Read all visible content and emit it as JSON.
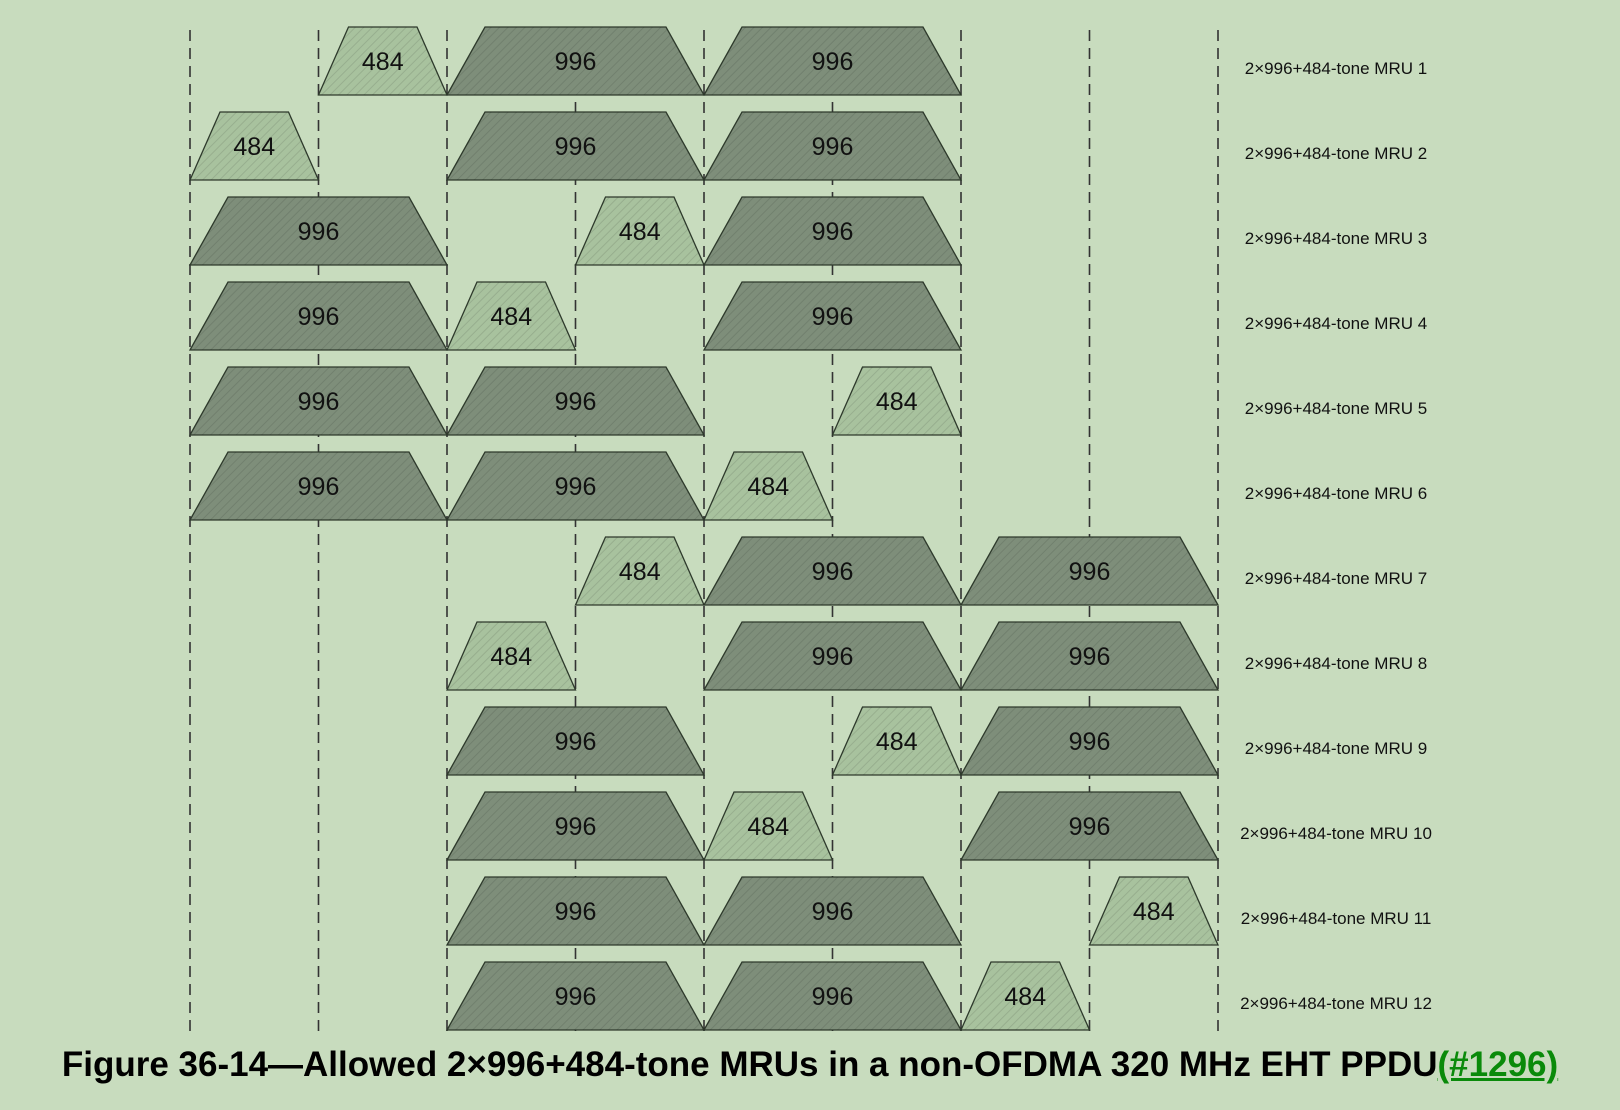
{
  "chart_data": {
    "type": "diagram",
    "segment_count": 8,
    "rows": [
      {
        "label": "2×996+484-tone MRU 1",
        "blocks": [
          {
            "size": "484",
            "start": 1,
            "span": 1
          },
          {
            "size": "996",
            "start": 2,
            "span": 2
          },
          {
            "size": "996",
            "start": 4,
            "span": 2
          }
        ]
      },
      {
        "label": "2×996+484-tone MRU 2",
        "blocks": [
          {
            "size": "484",
            "start": 0,
            "span": 1
          },
          {
            "size": "996",
            "start": 2,
            "span": 2
          },
          {
            "size": "996",
            "start": 4,
            "span": 2
          }
        ]
      },
      {
        "label": "2×996+484-tone MRU 3",
        "blocks": [
          {
            "size": "996",
            "start": 0,
            "span": 2
          },
          {
            "size": "484",
            "start": 3,
            "span": 1
          },
          {
            "size": "996",
            "start": 4,
            "span": 2
          }
        ]
      },
      {
        "label": "2×996+484-tone MRU 4",
        "blocks": [
          {
            "size": "996",
            "start": 0,
            "span": 2
          },
          {
            "size": "484",
            "start": 2,
            "span": 1
          },
          {
            "size": "996",
            "start": 4,
            "span": 2
          }
        ]
      },
      {
        "label": "2×996+484-tone MRU 5",
        "blocks": [
          {
            "size": "996",
            "start": 0,
            "span": 2
          },
          {
            "size": "996",
            "start": 2,
            "span": 2
          },
          {
            "size": "484",
            "start": 5,
            "span": 1
          }
        ]
      },
      {
        "label": "2×996+484-tone MRU 6",
        "blocks": [
          {
            "size": "996",
            "start": 0,
            "span": 2
          },
          {
            "size": "996",
            "start": 2,
            "span": 2
          },
          {
            "size": "484",
            "start": 4,
            "span": 1
          }
        ]
      },
      {
        "label": "2×996+484-tone MRU 7",
        "blocks": [
          {
            "size": "484",
            "start": 3,
            "span": 1
          },
          {
            "size": "996",
            "start": 4,
            "span": 2
          },
          {
            "size": "996",
            "start": 6,
            "span": 2
          }
        ]
      },
      {
        "label": "2×996+484-tone MRU 8",
        "blocks": [
          {
            "size": "484",
            "start": 2,
            "span": 1
          },
          {
            "size": "996",
            "start": 4,
            "span": 2
          },
          {
            "size": "996",
            "start": 6,
            "span": 2
          }
        ]
      },
      {
        "label": "2×996+484-tone MRU 9",
        "blocks": [
          {
            "size": "996",
            "start": 2,
            "span": 2
          },
          {
            "size": "484",
            "start": 5,
            "span": 1
          },
          {
            "size": "996",
            "start": 6,
            "span": 2
          }
        ]
      },
      {
        "label": "2×996+484-tone MRU 10",
        "blocks": [
          {
            "size": "996",
            "start": 2,
            "span": 2
          },
          {
            "size": "484",
            "start": 4,
            "span": 1
          },
          {
            "size": "996",
            "start": 6,
            "span": 2
          }
        ]
      },
      {
        "label": "2×996+484-tone MRU 11",
        "blocks": [
          {
            "size": "996",
            "start": 2,
            "span": 2
          },
          {
            "size": "996",
            "start": 4,
            "span": 2
          },
          {
            "size": "484",
            "start": 7,
            "span": 1
          }
        ]
      },
      {
        "label": "2×996+484-tone MRU 12",
        "blocks": [
          {
            "size": "996",
            "start": 2,
            "span": 2
          },
          {
            "size": "996",
            "start": 4,
            "span": 2
          },
          {
            "size": "484",
            "start": 6,
            "span": 1
          }
        ]
      }
    ]
  },
  "colors": {
    "background": "#c8dcbe",
    "block_996": "#7e8e7a",
    "block_484": "#a8c29e",
    "outline": "#2e3a2c",
    "caption_ref": "#0a8a0a"
  },
  "caption": {
    "text": "Figure 36-14—Allowed 2×996+484-tone MRUs in a non-OFDMA 320 MHz EHT PPDU",
    "ref": "(#1296)"
  }
}
